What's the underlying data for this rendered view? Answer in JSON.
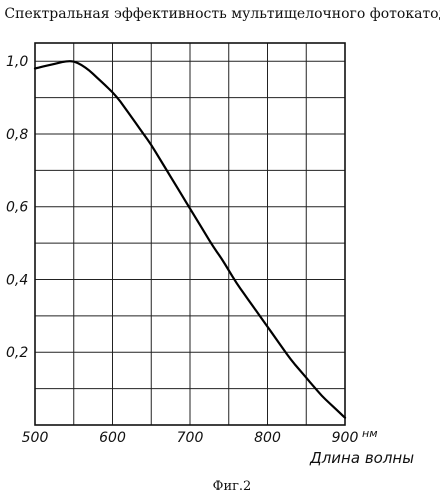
{
  "chart_data": {
    "type": "line",
    "title": "Спектральная эффективность мультищелочного фотокатода",
    "xlabel": "Длина волны",
    "x_unit": "нм",
    "ylabel": "",
    "xlim": [
      500,
      900
    ],
    "ylim": [
      0.0,
      1.05
    ],
    "grid": true,
    "x_ticks": [
      {
        "value": 500,
        "label": "500"
      },
      {
        "value": 600,
        "label": "600"
      },
      {
        "value": 700,
        "label": "700"
      },
      {
        "value": 800,
        "label": "800"
      },
      {
        "value": 900,
        "label": "900"
      }
    ],
    "y_ticks": [
      {
        "value": 1.0,
        "label": "1,0"
      },
      {
        "value": 0.8,
        "label": "0,8"
      },
      {
        "value": 0.6,
        "label": "0,6"
      },
      {
        "value": 0.4,
        "label": "0,4"
      },
      {
        "value": 0.2,
        "label": "0,2"
      }
    ],
    "series": [
      {
        "name": "",
        "color": "#000000",
        "x": [
          500,
          510,
          520,
          530,
          540,
          550,
          560,
          570,
          580,
          590,
          600,
          610,
          620,
          630,
          640,
          650,
          660,
          670,
          680,
          690,
          700,
          710,
          720,
          730,
          740,
          750,
          760,
          770,
          780,
          790,
          800,
          810,
          820,
          830,
          840,
          850,
          860,
          870,
          880,
          890,
          900
        ],
        "y": [
          0.98,
          0.985,
          0.99,
          0.995,
          1.0,
          1.0,
          0.99,
          0.975,
          0.955,
          0.935,
          0.915,
          0.89,
          0.86,
          0.83,
          0.8,
          0.77,
          0.735,
          0.7,
          0.665,
          0.63,
          0.595,
          0.56,
          0.525,
          0.49,
          0.46,
          0.425,
          0.39,
          0.36,
          0.33,
          0.3,
          0.27,
          0.24,
          0.21,
          0.18,
          0.155,
          0.13,
          0.105,
          0.08,
          0.06,
          0.04,
          0.02
        ]
      }
    ]
  },
  "caption": "Фиг.2"
}
